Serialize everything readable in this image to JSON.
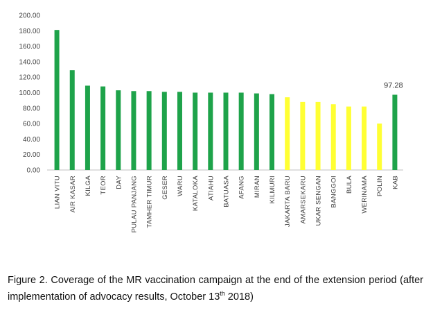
{
  "chart_data": {
    "type": "bar",
    "categories": [
      "LIAN VITU",
      "AIR KASAR",
      "KILGA",
      "TEOR",
      "DAY",
      "PULAU PANJANG",
      "TAMHER TIMUR",
      "GESER",
      "WARU",
      "KATALOKA",
      "ATIAHU",
      "BATUASA",
      "AFANG",
      "MIRAN",
      "KILMURI",
      "JAKARTA BARU",
      "AMARSEKARU",
      "UKAR SENGAN",
      "BANGGOI",
      "BULA",
      "WERINAMA",
      "POLIN",
      "KAB"
    ],
    "values": [
      181,
      129,
      109,
      108,
      103,
      102,
      102,
      101,
      101,
      100,
      100,
      100,
      100,
      99,
      98,
      94,
      88,
      88,
      85,
      82,
      82,
      60,
      97.28
    ],
    "colors": [
      "#1ea34a",
      "#1ea34a",
      "#1ea34a",
      "#1ea34a",
      "#1ea34a",
      "#1ea34a",
      "#1ea34a",
      "#1ea34a",
      "#1ea34a",
      "#1ea34a",
      "#1ea34a",
      "#1ea34a",
      "#1ea34a",
      "#1ea34a",
      "#1ea34a",
      "#ffff33",
      "#ffff33",
      "#ffff33",
      "#ffff33",
      "#ffff33",
      "#ffff33",
      "#ffff33",
      "#1ea34a"
    ],
    "y_ticks": [
      "0.00",
      "20.00",
      "40.00",
      "60.00",
      "80.00",
      "100.00",
      "120.00",
      "140.00",
      "160.00",
      "180.00",
      "200.00"
    ],
    "ylim": [
      0,
      200
    ],
    "data_labels": [
      {
        "category": "KAB",
        "text": "97.28"
      }
    ],
    "grid": false,
    "legend": "none"
  },
  "caption": {
    "text": "Figure 2. Coverage of the MR vaccination campaign at the end of the extension period (after implementation of advocacy results, October 13",
    "sup": "th",
    "tail": " 2018)"
  }
}
